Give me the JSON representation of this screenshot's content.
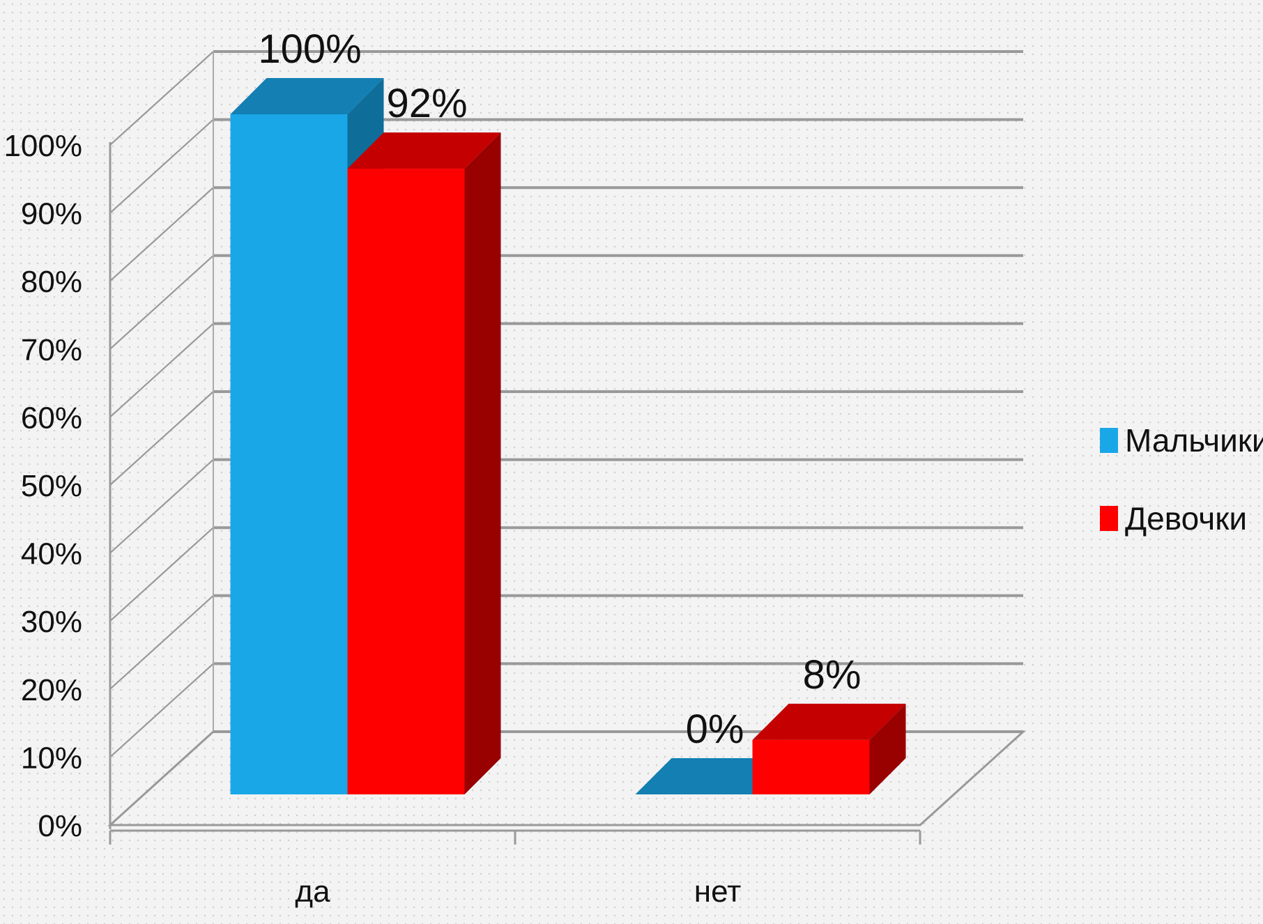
{
  "chart_data": {
    "type": "bar",
    "categories": [
      "да",
      "нет"
    ],
    "series": [
      {
        "name": "Мальчики",
        "values": [
          100,
          0
        ],
        "labels": [
          "100%",
          "0%"
        ],
        "color": "#1aa7e8",
        "top_color": "#137fb3",
        "side_color": "#0f6d99"
      },
      {
        "name": "Девочки",
        "values": [
          92,
          8
        ],
        "labels": [
          "92%",
          "8%"
        ],
        "color": "#ff0000",
        "top_color": "#c40000",
        "side_color": "#990000"
      }
    ],
    "ylim": [
      0,
      100
    ],
    "yticks": [
      "0%",
      "10%",
      "20%",
      "30%",
      "40%",
      "50%",
      "60%",
      "70%",
      "80%",
      "90%",
      "100%"
    ],
    "ytick_step": 10,
    "grid": true,
    "three_d": true,
    "legend": "right",
    "title": "",
    "xlabel": "",
    "ylabel": ""
  }
}
